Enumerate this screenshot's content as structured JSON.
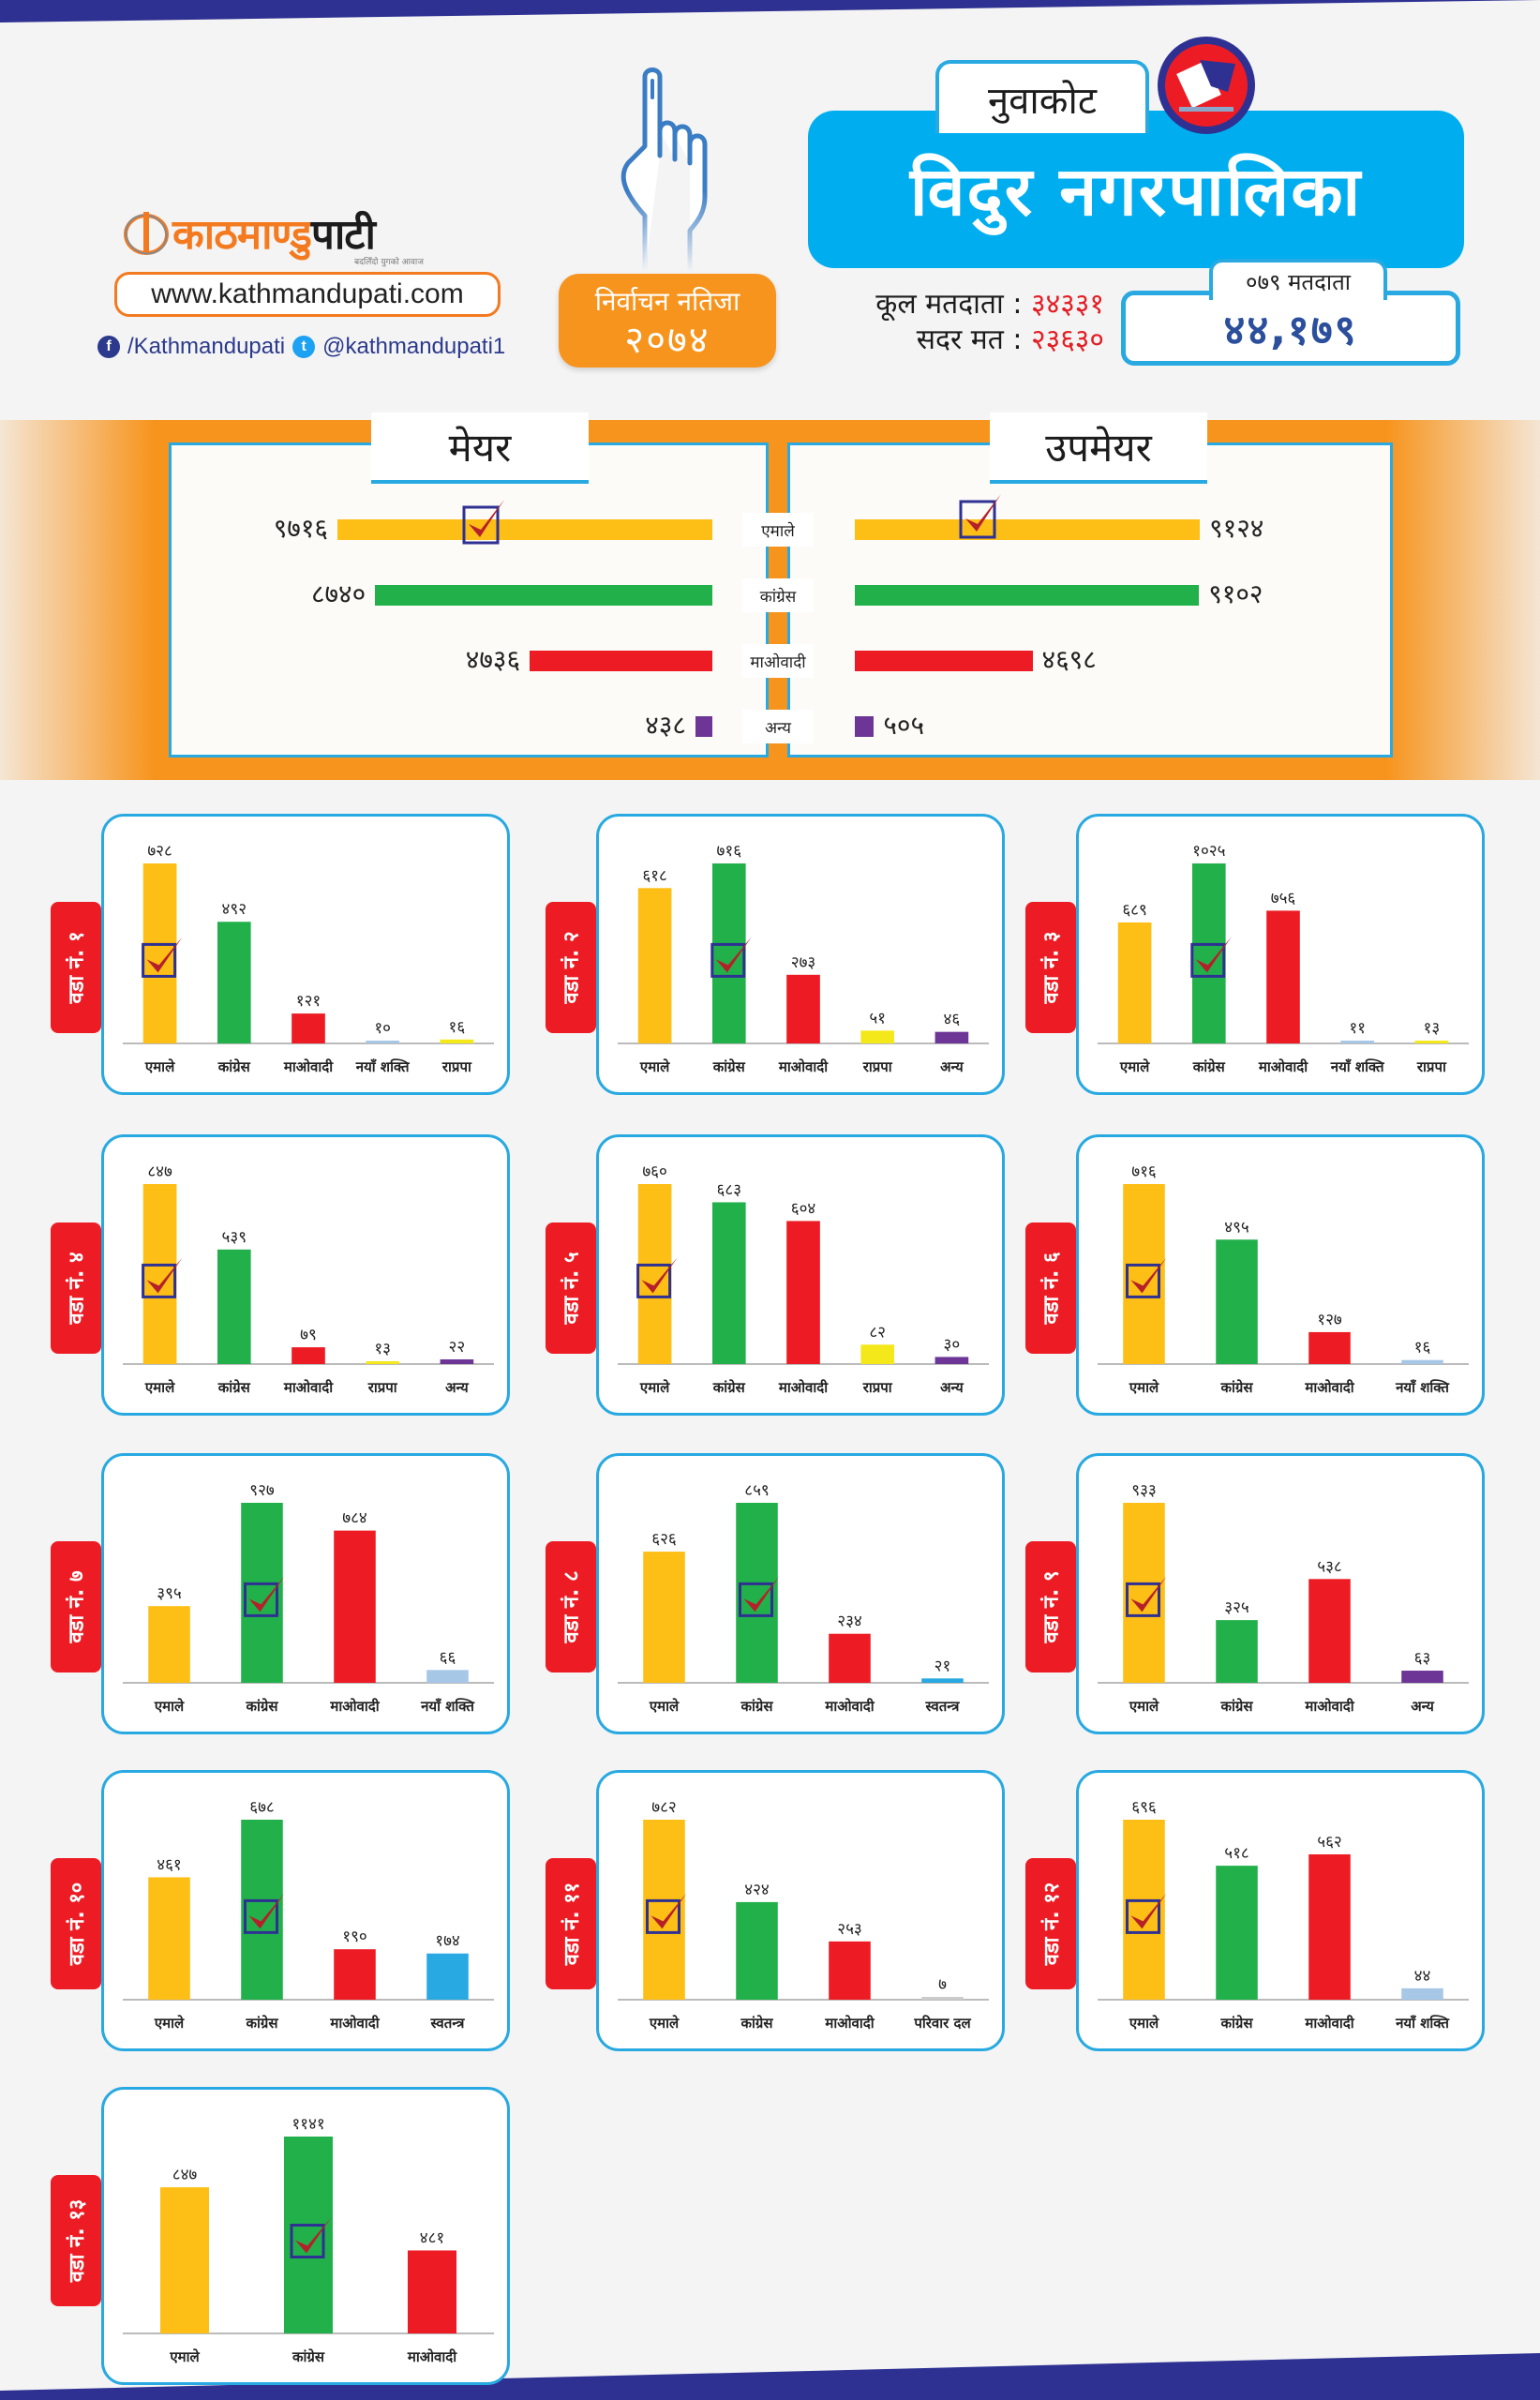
{
  "header": {
    "brand_part1": "काठमाण्डु",
    "brand_part2": "पाटी",
    "brand_tagline": "बदलिँदो युगको आवाज",
    "website": "www.kathmandupati.com",
    "facebook": "/Kathmandupati",
    "twitter": "@kathmandupati1",
    "result_label": "निर्वाचन नतिजा",
    "result_year": "२०७४",
    "district": "नुवाकोट",
    "municipality": "विदुर नगरपालिका",
    "total_voters_label": "कूल मतदाता",
    "total_voters": "३४३३१",
    "valid_votes_label": "सदर मत",
    "valid_votes": "२३६३०",
    "voters_079_label": "०७९ मतदाता",
    "voters_079": "४४,१७९",
    "icons": {
      "logo": "kathmandupati-logo-icon",
      "hand": "voting-finger-icon",
      "emblem": "ballot-box-emblem-icon",
      "facebook": "facebook-icon",
      "twitter": "twitter-icon"
    }
  },
  "colors": {
    "emale": "#fdbe15",
    "congress": "#22b04b",
    "maoist": "#ed1c24",
    "anya": "#6c3596",
    "rpp": "#f4e81b",
    "naya_shakti": "#a7c7e7",
    "swatantra": "#29a9e1",
    "parivar_dal": "#cccccc",
    "accent_blue": "#00aeef",
    "accent_orange": "#f7941d",
    "navy": "#2e3192",
    "check_red": "#b5202a"
  },
  "summary": {
    "mayor_title": "मेयर",
    "deputy_title": "उपमेयर",
    "rows": [
      {
        "party": "एमाले",
        "key": "emale",
        "mayor": 9716,
        "mayor_label": "९७१६",
        "deputy": 9124,
        "deputy_label": "९१२४",
        "mayor_winner": true,
        "deputy_winner": true
      },
      {
        "party": "कांग्रेस",
        "key": "congress",
        "mayor": 8740,
        "mayor_label": "८७४०",
        "deputy": 9102,
        "deputy_label": "९१०२",
        "mayor_winner": false,
        "deputy_winner": false
      },
      {
        "party": "माओवादी",
        "key": "maoist",
        "mayor": 4736,
        "mayor_label": "४७३६",
        "deputy": 4698,
        "deputy_label": "४६९८",
        "mayor_winner": false,
        "deputy_winner": false
      },
      {
        "party": "अन्य",
        "key": "anya",
        "mayor": 438,
        "mayor_label": "४३८",
        "deputy": 505,
        "deputy_label": "५०५",
        "mayor_winner": false,
        "deputy_winner": false
      }
    ]
  },
  "chart_data": [
    {
      "type": "bar",
      "title": "वडा नं. १",
      "ward": 1,
      "winner": 0,
      "categories": [
        "एमाले",
        "कांग्रेस",
        "माओवादी",
        "नयाँ शक्ति",
        "राप्रपा"
      ],
      "keys": [
        "emale",
        "congress",
        "maoist",
        "naya_shakti",
        "rpp"
      ],
      "values": [
        728,
        492,
        121,
        10,
        16
      ],
      "labels": [
        "७२८",
        "४९२",
        "१२१",
        "१०",
        "१६"
      ]
    },
    {
      "type": "bar",
      "title": "वडा नं. २",
      "ward": 2,
      "winner": 1,
      "categories": [
        "एमाले",
        "कांग्रेस",
        "माओवादी",
        "राप्रपा",
        "अन्य"
      ],
      "keys": [
        "emale",
        "congress",
        "maoist",
        "rpp",
        "anya"
      ],
      "values": [
        618,
        716,
        273,
        51,
        46
      ],
      "labels": [
        "६१८",
        "७१६",
        "२७३",
        "५१",
        "४६"
      ]
    },
    {
      "type": "bar",
      "title": "वडा नं. ३",
      "ward": 3,
      "winner": 1,
      "categories": [
        "एमाले",
        "कांग्रेस",
        "माओवादी",
        "नयाँ शक्ति",
        "राप्रपा"
      ],
      "keys": [
        "emale",
        "congress",
        "maoist",
        "naya_shakti",
        "rpp"
      ],
      "values": [
        689,
        1025,
        756,
        11,
        13
      ],
      "labels": [
        "६८९",
        "१०२५",
        "७५६",
        "११",
        "१३"
      ]
    },
    {
      "type": "bar",
      "title": "वडा नं. ४",
      "ward": 4,
      "winner": 0,
      "categories": [
        "एमाले",
        "कांग्रेस",
        "माओवादी",
        "राप्रपा",
        "अन्य"
      ],
      "keys": [
        "emale",
        "congress",
        "maoist",
        "rpp",
        "anya"
      ],
      "values": [
        847,
        539,
        79,
        13,
        22
      ],
      "labels": [
        "८४७",
        "५३९",
        "७९",
        "१३",
        "२२"
      ]
    },
    {
      "type": "bar",
      "title": "वडा नं. ५",
      "ward": 5,
      "winner": 0,
      "categories": [
        "एमाले",
        "कांग्रेस",
        "माओवादी",
        "राप्रपा",
        "अन्य"
      ],
      "keys": [
        "emale",
        "congress",
        "maoist",
        "rpp",
        "anya"
      ],
      "values": [
        760,
        683,
        604,
        82,
        30
      ],
      "labels": [
        "७६०",
        "६८३",
        "६०४",
        "८२",
        "३०"
      ]
    },
    {
      "type": "bar",
      "title": "वडा नं. ६",
      "ward": 6,
      "winner": 0,
      "categories": [
        "एमाले",
        "कांग्रेस",
        "माओवादी",
        "नयाँ शक्ति"
      ],
      "keys": [
        "emale",
        "congress",
        "maoist",
        "naya_shakti"
      ],
      "values": [
        716,
        495,
        127,
        16
      ],
      "labels": [
        "७१६",
        "४९५",
        "१२७",
        "१६"
      ]
    },
    {
      "type": "bar",
      "title": "वडा नं. ७",
      "ward": 7,
      "winner": 1,
      "categories": [
        "एमाले",
        "कांग्रेस",
        "माओवादी",
        "नयाँ शक्ति"
      ],
      "keys": [
        "emale",
        "congress",
        "maoist",
        "naya_shakti"
      ],
      "values": [
        395,
        927,
        784,
        66
      ],
      "labels": [
        "३९५",
        "९२७",
        "७८४",
        "६६"
      ]
    },
    {
      "type": "bar",
      "title": "वडा नं. ८",
      "ward": 8,
      "winner": 1,
      "categories": [
        "एमाले",
        "कांग्रेस",
        "माओवादी",
        "स्वतन्त्र"
      ],
      "keys": [
        "emale",
        "congress",
        "maoist",
        "swatantra"
      ],
      "values": [
        626,
        859,
        234,
        21
      ],
      "labels": [
        "६२६",
        "८५९",
        "२३४",
        "२१"
      ]
    },
    {
      "type": "bar",
      "title": "वडा नं. ९",
      "ward": 9,
      "winner": 0,
      "categories": [
        "एमाले",
        "कांग्रेस",
        "माओवादी",
        "अन्य"
      ],
      "keys": [
        "emale",
        "congress",
        "maoist",
        "anya"
      ],
      "values": [
        933,
        325,
        538,
        63
      ],
      "labels": [
        "९३३",
        "३२५",
        "५३८",
        "६३"
      ]
    },
    {
      "type": "bar",
      "title": "वडा नं. १०",
      "ward": 10,
      "winner": 1,
      "categories": [
        "एमाले",
        "कांग्रेस",
        "माओवादी",
        "स्वतन्त्र"
      ],
      "keys": [
        "emale",
        "congress",
        "maoist",
        "swatantra"
      ],
      "values": [
        461,
        678,
        190,
        174
      ],
      "labels": [
        "४६१",
        "६७८",
        "१९०",
        "१७४"
      ]
    },
    {
      "type": "bar",
      "title": "वडा नं. ११",
      "ward": 11,
      "winner": 0,
      "categories": [
        "एमाले",
        "कांग्रेस",
        "माओवादी",
        "परिवार दल"
      ],
      "keys": [
        "emale",
        "congress",
        "maoist",
        "parivar_dal"
      ],
      "values": [
        782,
        424,
        253,
        7
      ],
      "labels": [
        "७८२",
        "४२४",
        "२५३",
        "७"
      ]
    },
    {
      "type": "bar",
      "title": "वडा नं. १२",
      "ward": 12,
      "winner": 0,
      "categories": [
        "एमाले",
        "कांग्रेस",
        "माओवादी",
        "नयाँ शक्ति"
      ],
      "keys": [
        "emale",
        "congress",
        "maoist",
        "naya_shakti"
      ],
      "values": [
        696,
        518,
        562,
        44
      ],
      "labels": [
        "६९६",
        "५१८",
        "५६२",
        "४४"
      ]
    },
    {
      "type": "bar",
      "title": "वडा नं. १३",
      "ward": 13,
      "winner": 1,
      "categories": [
        "एमाले",
        "कांग्रेस",
        "माओवादी"
      ],
      "keys": [
        "emale",
        "congress",
        "maoist"
      ],
      "values": [
        847,
        1141,
        481
      ],
      "labels": [
        "८४७",
        "११४१",
        "४८१"
      ]
    }
  ]
}
